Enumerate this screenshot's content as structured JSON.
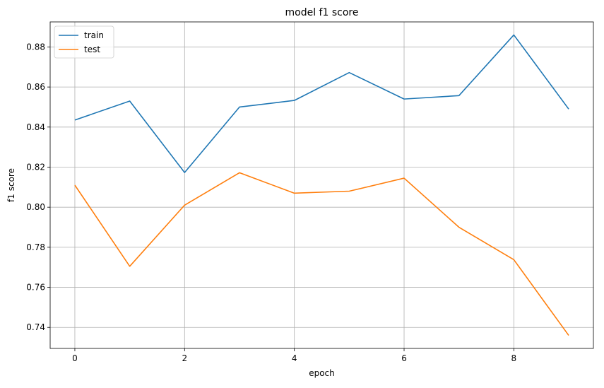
{
  "chart_data": {
    "type": "line",
    "title": "model f1 score",
    "xlabel": "epoch",
    "ylabel": "f1 score",
    "x": [
      0,
      1,
      2,
      3,
      4,
      5,
      6,
      7,
      8,
      9
    ],
    "xlim": [
      -0.45,
      9.45
    ],
    "ylim": [
      0.7295,
      0.8925
    ],
    "xticks": [
      0,
      2,
      4,
      6,
      8
    ],
    "yticks": [
      0.74,
      0.76,
      0.78,
      0.8,
      0.82,
      0.84,
      0.86,
      0.88
    ],
    "xtick_labels": [
      "0",
      "2",
      "4",
      "6",
      "8"
    ],
    "ytick_labels": [
      "0.74",
      "0.76",
      "0.78",
      "0.80",
      "0.82",
      "0.84",
      "0.86",
      "0.88"
    ],
    "grid": true,
    "legend_position": "top-left",
    "series": [
      {
        "name": "train",
        "color": "#1f77b4",
        "values": [
          0.8435,
          0.853,
          0.8173,
          0.85,
          0.8533,
          0.8672,
          0.854,
          0.8557,
          0.886,
          0.849
        ]
      },
      {
        "name": "test",
        "color": "#ff7f0e",
        "values": [
          0.811,
          0.7705,
          0.801,
          0.8172,
          0.807,
          0.808,
          0.8145,
          0.79,
          0.7738,
          0.736
        ]
      }
    ]
  }
}
